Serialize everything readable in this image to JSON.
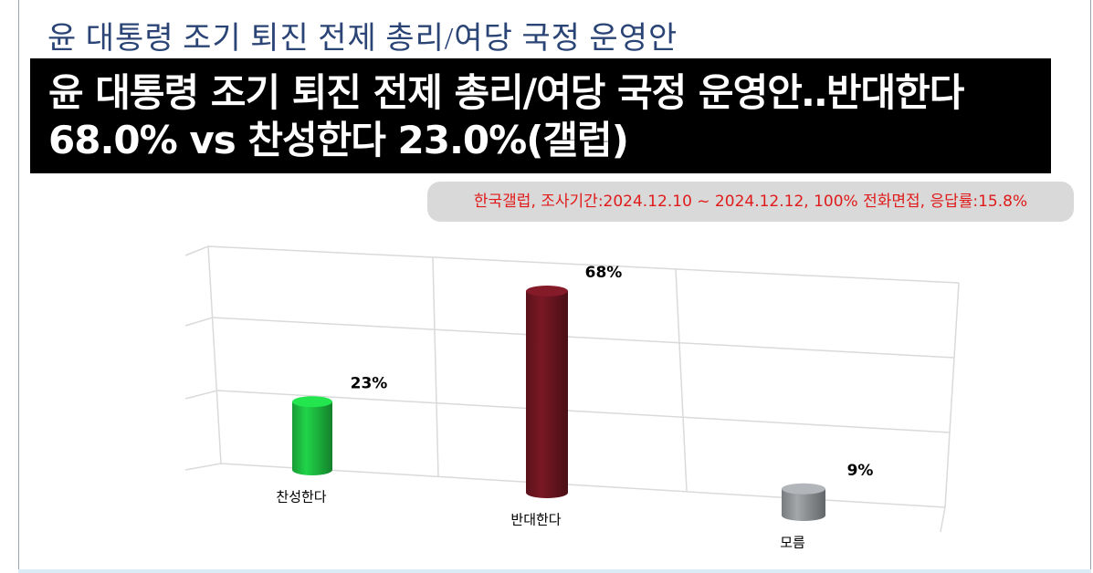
{
  "header": {
    "title": "윤 대통령 조기 퇴진 전제 총리/여당 국정 운영안"
  },
  "headline": [
    "윤 대통령 조기 퇴진 전제 총리/여당 국정 운영안‥반대한다",
    "68.0% vs 찬성한다 23.0%(갤럽)"
  ],
  "note": "한국갤럽, 조사기간:2024.12.10 ~ 2024.12.12, 100% 전화면접, 응답률:15.8%",
  "chart_data": {
    "type": "bar",
    "categories": [
      "찬성한다",
      "반대한다",
      "모름"
    ],
    "values": [
      23,
      68,
      9
    ],
    "value_labels": [
      "23%",
      "68%",
      "9%"
    ],
    "colors": [
      "#1cb83f",
      "#6a1520",
      "#8e9194"
    ]
  }
}
